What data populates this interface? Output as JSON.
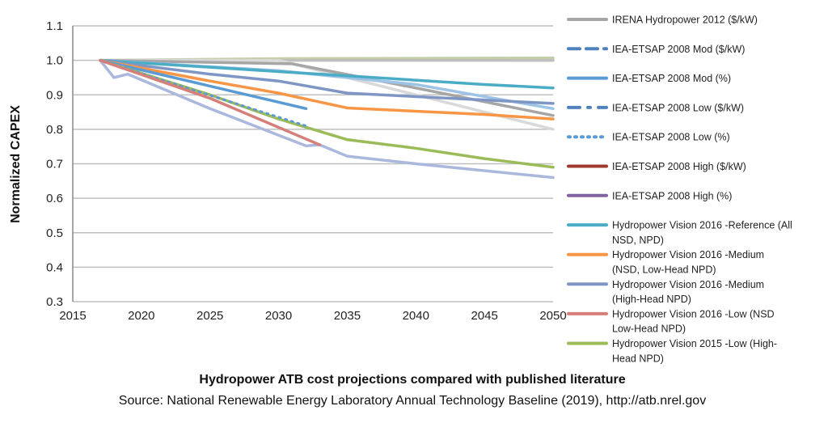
{
  "chart_data": {
    "type": "line",
    "title": "Hydropower ATB cost projections compared with published literature",
    "subtitle": "Source: National Renewable Energy Laboratory Annual Technology Baseline (2019), http://atb.nrel.gov",
    "xlabel": "",
    "ylabel": "Normalized CAPEX",
    "xlim": [
      2015,
      2050
    ],
    "ylim": [
      0.3,
      1.1
    ],
    "xticks": [
      2015,
      2020,
      2025,
      2030,
      2035,
      2040,
      2045,
      2050
    ],
    "yticks": [
      0.3,
      0.4,
      0.5,
      0.6,
      0.7,
      0.8,
      0.9,
      1.0,
      1.1
    ],
    "ytick_labels": [
      "0.3",
      "0.4",
      "0.5",
      "0.6",
      "0.7",
      "0.8",
      "0.9",
      "1.0",
      "1.1"
    ],
    "grid": "horizontal",
    "legend_placement": "right",
    "legend": [
      {
        "lines": [
          "IRENA Hydropower 2012 ($/kW)"
        ],
        "color": "#a6a6a6",
        "dash": "solid"
      },
      {
        "lines": [
          "IEA-ETSAP 2008 Mod ($/kW)"
        ],
        "color": "#4f81bd",
        "dash": "dash"
      },
      {
        "lines": [
          "IEA-ETSAP 2008 Mod (%)"
        ],
        "color": "#5b9bd5",
        "dash": "solid"
      },
      {
        "lines": [
          "IEA-ETSAP 2008 Low ($/kW)"
        ],
        "color": "#4f81bd",
        "dash": "dashdot"
      },
      {
        "lines": [
          "IEA-ETSAP 2008 Low (%)"
        ],
        "color": "#5b9bd5",
        "dash": "dot"
      },
      {
        "lines": [
          "IEA-ETSAP 2008 High ($/kW)"
        ],
        "color": "#a0392f",
        "dash": "solid"
      },
      {
        "lines": [
          "IEA-ETSAP 2008 High (%)"
        ],
        "color": "#8064a2",
        "dash": "solid"
      },
      {
        "lines": [
          "Hydropower Vision 2016 -Reference (All",
          "NSD, NPD)"
        ],
        "color": "#4bacc6",
        "dash": "solid"
      },
      {
        "lines": [
          "Hydropower Vision 2016 -Medium",
          "(NSD, Low-Head NPD)"
        ],
        "color": "#f79646",
        "dash": "solid"
      },
      {
        "lines": [
          "Hydropower Vision 2016 -Medium",
          "(High-Head NPD)"
        ],
        "color": "#7f96c4",
        "dash": "solid"
      },
      {
        "lines": [
          "Hydropower Vision 2016 -Low (NSD",
          "Low-Head NPD)"
        ],
        "color": "#d67f7a",
        "dash": "solid"
      },
      {
        "lines": [
          "Hydropower Vision  2015 -Low (High-",
          "Head NPD)"
        ],
        "color": "#9bbb59",
        "dash": "solid"
      }
    ],
    "series": [
      {
        "color": "#c4cfa8",
        "dash": "solid",
        "x": [
          2017,
          2030,
          2050
        ],
        "y": [
          1.0,
          1.005,
          1.007
        ]
      },
      {
        "color": "#bfbfbf",
        "dash": "solid",
        "x": [
          2017,
          2050
        ],
        "y": [
          1.0,
          1.0
        ]
      },
      {
        "color": "#d9d9d9",
        "dash": "solid",
        "x": [
          2017,
          2030,
          2050
        ],
        "y": [
          1.0,
          1.0,
          0.8
        ]
      },
      {
        "name": "IRENA Hydropower 2012 ($/kW)",
        "color": "#a6a6a6",
        "dash": "solid",
        "x": [
          2017,
          2031,
          2040,
          2050
        ],
        "y": [
          1.0,
          0.99,
          0.92,
          0.84
        ]
      },
      {
        "color": "#9dc3e6",
        "dash": "solid",
        "x": [
          2017,
          2030,
          2040,
          2050
        ],
        "y": [
          1.0,
          0.97,
          0.93,
          0.86
        ]
      },
      {
        "name": "Hydropower Vision 2016 -Reference (All NSD, NPD)",
        "color": "#4bacc6",
        "dash": "solid",
        "x": [
          2017,
          2025,
          2035,
          2045,
          2050
        ],
        "y": [
          1.0,
          0.98,
          0.955,
          0.93,
          0.92
        ]
      },
      {
        "name": "Hydropower Vision 2016 -Medium (High-Head NPD)",
        "color": "#7f96c4",
        "dash": "solid",
        "x": [
          2017,
          2025,
          2030,
          2035,
          2045,
          2050
        ],
        "y": [
          1.0,
          0.96,
          0.94,
          0.905,
          0.885,
          0.875
        ]
      },
      {
        "name": "Hydropower Vision 2016 -Medium (NSD, Low-Head NPD)",
        "color": "#f79646",
        "dash": "solid",
        "x": [
          2017,
          2025,
          2030,
          2035,
          2045,
          2050
        ],
        "y": [
          1.0,
          0.94,
          0.905,
          0.862,
          0.843,
          0.83
        ]
      },
      {
        "name": "IEA-ETSAP 2008 Mod (%)",
        "color": "#5b9bd5",
        "dash": "solid",
        "x": [
          2017,
          2032
        ],
        "y": [
          1.0,
          0.86
        ]
      },
      {
        "name": "Hydropower Vision  2015 -Low (High-Head NPD)",
        "color": "#9bbb59",
        "dash": "solid",
        "x": [
          2017,
          2025,
          2030,
          2035,
          2040,
          2045,
          2050
        ],
        "y": [
          1.0,
          0.9,
          0.83,
          0.77,
          0.745,
          0.715,
          0.69
        ]
      },
      {
        "name": "IEA-ETSAP 2008 Low (%)",
        "color": "#5b9bd5",
        "dash": "dot",
        "x": [
          2017,
          2032
        ],
        "y": [
          1.0,
          0.81
        ]
      },
      {
        "color": "#a9b8dc",
        "dash": "solid",
        "x": [
          2017,
          2018,
          2019,
          2025,
          2032,
          2033,
          2035,
          2040,
          2050
        ],
        "y": [
          1.0,
          0.95,
          0.96,
          0.86,
          0.752,
          0.755,
          0.722,
          0.7,
          0.66
        ]
      },
      {
        "name": "Hydropower Vision 2016 -Low (NSD Low-Head NPD)",
        "color": "#d67f7a",
        "dash": "solid",
        "x": [
          2017,
          2025,
          2033
        ],
        "y": [
          1.0,
          0.89,
          0.755
        ]
      }
    ]
  }
}
